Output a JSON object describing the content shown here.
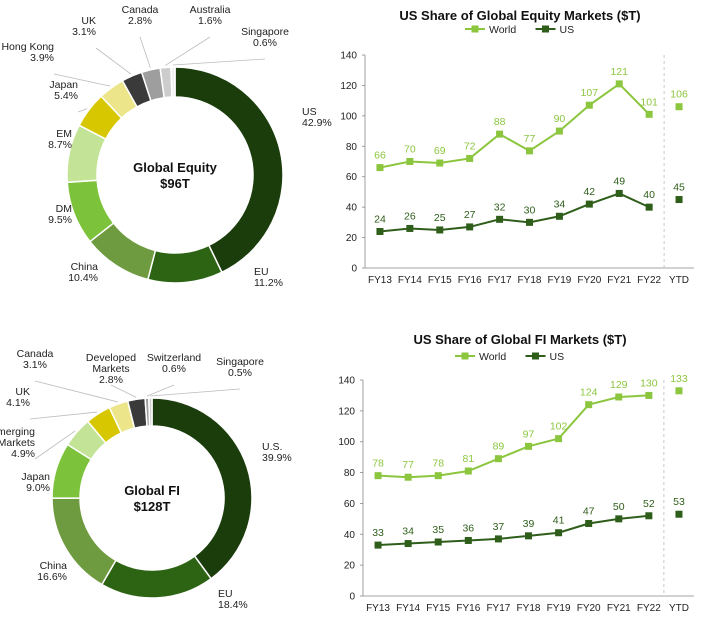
{
  "chart_data": [
    {
      "type": "pie",
      "center_label": [
        "Global Equity",
        "$96T"
      ],
      "slices": [
        {
          "label": [
            "US"
          ],
          "value": 42.9,
          "display": "42.9%",
          "color": "#1b3d0c"
        },
        {
          "label": [
            "EU"
          ],
          "value": 11.2,
          "display": "11.2%",
          "color": "#2d6414"
        },
        {
          "label": [
            "China"
          ],
          "value": 10.4,
          "display": "10.4%",
          "color": "#6e9b3f"
        },
        {
          "label": [
            "DM"
          ],
          "value": 9.5,
          "display": "9.5%",
          "color": "#7cc23a"
        },
        {
          "label": [
            "EM"
          ],
          "value": 8.7,
          "display": "8.7%",
          "color": "#c3e397"
        },
        {
          "label": [
            "Japan"
          ],
          "value": 5.4,
          "display": "5.4%",
          "color": "#d6c700"
        },
        {
          "label": [
            "Hong Kong"
          ],
          "value": 3.9,
          "display": "3.9%",
          "color": "#ece58a"
        },
        {
          "label": [
            "UK"
          ],
          "value": 3.1,
          "display": "3.1%",
          "color": "#3a3a3a"
        },
        {
          "label": [
            "Canada"
          ],
          "value": 2.8,
          "display": "2.8%",
          "color": "#9e9e9e"
        },
        {
          "label": [
            "Australia"
          ],
          "value": 1.6,
          "display": "1.6%",
          "color": "#cccccc"
        },
        {
          "label": [
            "Singapore"
          ],
          "value": 0.6,
          "display": "0.6%",
          "color": "#f0f0f0"
        }
      ]
    },
    {
      "type": "line",
      "title": "US Share of Global Equity Markets ($T)",
      "categories": [
        "FY13",
        "FY14",
        "FY15",
        "FY16",
        "FY17",
        "FY18",
        "FY19",
        "FY20",
        "FY21",
        "FY22",
        "YTD"
      ],
      "ylim": [
        0,
        140
      ],
      "yticks": [
        0,
        20,
        40,
        60,
        80,
        100,
        120,
        140
      ],
      "legend": "top",
      "series": [
        {
          "name": "World",
          "color": "#8cc63f",
          "values": [
            66,
            70,
            69,
            72,
            88,
            77,
            90,
            107,
            121,
            101,
            106
          ]
        },
        {
          "name": "US",
          "color": "#2e5e1a",
          "values": [
            24,
            26,
            25,
            27,
            32,
            30,
            34,
            42,
            49,
            40,
            45
          ]
        }
      ]
    },
    {
      "type": "pie",
      "center_label": [
        "Global FI",
        "$128T"
      ],
      "slices": [
        {
          "label": [
            "U.S."
          ],
          "value": 39.9,
          "display": "39.9%",
          "color": "#1b3d0c"
        },
        {
          "label": [
            "EU"
          ],
          "value": 18.4,
          "display": "18.4%",
          "color": "#2d6414"
        },
        {
          "label": [
            "China"
          ],
          "value": 16.6,
          "display": "16.6%",
          "color": "#6e9b3f"
        },
        {
          "label": [
            "Japan"
          ],
          "value": 9.0,
          "display": "9.0%",
          "color": "#7cc23a"
        },
        {
          "label": [
            "Emerging",
            "Markets"
          ],
          "value": 4.9,
          "display": "4.9%",
          "color": "#c3e397"
        },
        {
          "label": [
            "UK"
          ],
          "value": 4.1,
          "display": "4.1%",
          "color": "#d6c700"
        },
        {
          "label": [
            "Canada"
          ],
          "value": 3.1,
          "display": "3.1%",
          "color": "#ece58a"
        },
        {
          "label": [
            "Developed",
            "Markets"
          ],
          "value": 2.8,
          "display": "2.8%",
          "color": "#3a3a3a"
        },
        {
          "label": [
            "Switzerland"
          ],
          "value": 0.6,
          "display": "0.6%",
          "color": "#9e9e9e"
        },
        {
          "label": [
            "Singapore"
          ],
          "value": 0.5,
          "display": "0.5%",
          "color": "#cccccc"
        }
      ]
    },
    {
      "type": "line",
      "title": "US Share of Global FI Markets ($T)",
      "categories": [
        "FY13",
        "FY14",
        "FY15",
        "FY16",
        "FY17",
        "FY18",
        "FY19",
        "FY20",
        "FY21",
        "FY22",
        "YTD"
      ],
      "ylim": [
        0,
        140
      ],
      "yticks": [
        0,
        20,
        40,
        60,
        80,
        100,
        120,
        140
      ],
      "legend": "top",
      "series": [
        {
          "name": "World",
          "color": "#8cc63f",
          "values": [
            78,
            77,
            78,
            81,
            89,
            97,
            102,
            124,
            129,
            130,
            133
          ]
        },
        {
          "name": "US",
          "color": "#2e5e1a",
          "values": [
            33,
            34,
            35,
            36,
            37,
            39,
            41,
            47,
            50,
            52,
            53
          ]
        }
      ]
    }
  ]
}
